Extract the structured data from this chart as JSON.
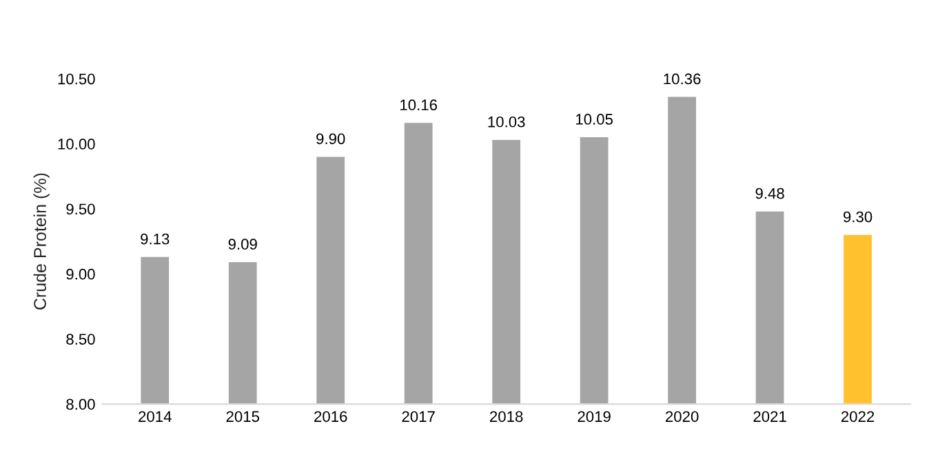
{
  "chart_data": {
    "type": "bar",
    "ylabel": "Crude Protein (%)",
    "categories": [
      "2014",
      "2015",
      "2016",
      "2017",
      "2018",
      "2019",
      "2020",
      "2021",
      "2022"
    ],
    "values": [
      9.13,
      9.09,
      9.9,
      10.16,
      10.03,
      10.05,
      10.36,
      9.48,
      9.3
    ],
    "colors": [
      "#a5a5a5",
      "#a5a5a5",
      "#a5a5a5",
      "#a5a5a5",
      "#a5a5a5",
      "#a5a5a5",
      "#a5a5a5",
      "#a5a5a5",
      "#ffc12e"
    ],
    "value_labels": [
      "9.13",
      "9.09",
      "9.90",
      "10.16",
      "10.03",
      "10.05",
      "10.36",
      "9.48",
      "9.30"
    ],
    "ylim": [
      8.0,
      10.5
    ],
    "yticks": [
      {
        "value": 8.0,
        "label": "8.00"
      },
      {
        "value": 8.5,
        "label": "8.50"
      },
      {
        "value": 9.0,
        "label": "9.00"
      },
      {
        "value": 9.5,
        "label": "9.50"
      },
      {
        "value": 10.0,
        "label": "10.00"
      },
      {
        "value": 10.5,
        "label": "10.50"
      }
    ],
    "grid": false,
    "legend": false
  }
}
